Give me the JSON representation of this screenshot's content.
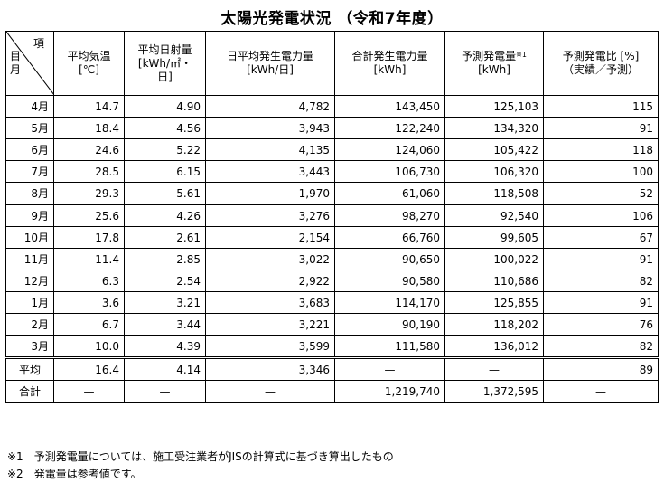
{
  "title": "太陽光発電状況 （令和7年度）",
  "header": {
    "corner_top": "項",
    "corner_bottom": "目\n月",
    "col1": [
      "平均気温",
      "[℃]"
    ],
    "col2": [
      "平均日射量",
      "[kWh/㎡・",
      "日]"
    ],
    "col3": [
      "日平均発生電力量",
      "[kWh/日]"
    ],
    "col4": [
      "合計発生電力量",
      "[kWh]"
    ],
    "col5": [
      "予測発電量",
      "※1",
      "[kWh]"
    ],
    "col6": [
      "予測発電比 [%]",
      "（実績／予測）"
    ]
  },
  "rows": [
    {
      "month": "4月",
      "temp": "14.7",
      "irr": "4.90",
      "daily": "4,782",
      "total": "143,450",
      "pred": "125,103",
      "ratio": "115"
    },
    {
      "month": "5月",
      "temp": "18.4",
      "irr": "4.56",
      "daily": "3,943",
      "total": "122,240",
      "pred": "134,320",
      "ratio": "91"
    },
    {
      "month": "6月",
      "temp": "24.6",
      "irr": "5.22",
      "daily": "4,135",
      "total": "124,060",
      "pred": "105,422",
      "ratio": "118"
    },
    {
      "month": "7月",
      "temp": "28.5",
      "irr": "6.15",
      "daily": "3,443",
      "total": "106,730",
      "pred": "106,320",
      "ratio": "100"
    },
    {
      "month": "8月",
      "temp": "29.3",
      "irr": "5.61",
      "daily": "1,970",
      "total": "61,060",
      "pred": "118,508",
      "ratio": "52"
    },
    {
      "month": "9月",
      "temp": "25.6",
      "irr": "4.26",
      "daily": "3,276",
      "total": "98,270",
      "pred": "92,540",
      "ratio": "106"
    },
    {
      "month": "10月",
      "temp": "17.8",
      "irr": "2.61",
      "daily": "2,154",
      "total": "66,760",
      "pred": "99,605",
      "ratio": "67"
    },
    {
      "month": "11月",
      "temp": "11.4",
      "irr": "2.85",
      "daily": "3,022",
      "total": "90,650",
      "pred": "100,022",
      "ratio": "91"
    },
    {
      "month": "12月",
      "temp": "6.3",
      "irr": "2.54",
      "daily": "2,922",
      "total": "90,580",
      "pred": "110,686",
      "ratio": "82"
    },
    {
      "month": "1月",
      "temp": "3.6",
      "irr": "3.21",
      "daily": "3,683",
      "total": "114,170",
      "pred": "125,855",
      "ratio": "91"
    },
    {
      "month": "2月",
      "temp": "6.7",
      "irr": "3.44",
      "daily": "3,221",
      "total": "90,190",
      "pred": "118,202",
      "ratio": "76"
    },
    {
      "month": "3月",
      "temp": "10.0",
      "irr": "4.39",
      "daily": "3,599",
      "total": "111,580",
      "pred": "136,012",
      "ratio": "82"
    }
  ],
  "average": {
    "label": "平均",
    "temp": "16.4",
    "irr": "4.14",
    "daily": "3,346",
    "total": "—",
    "pred": "—",
    "ratio": "89"
  },
  "sum": {
    "label": "合計",
    "temp": "—",
    "irr": "—",
    "daily": "—",
    "total": "1,219,740",
    "pred": "1,372,595",
    "ratio": "—"
  },
  "notes": [
    "※1　予測発電量については、施工受注業者がJISの計算式に基づき算出したもの",
    "※2　発電量は参考値です。"
  ]
}
